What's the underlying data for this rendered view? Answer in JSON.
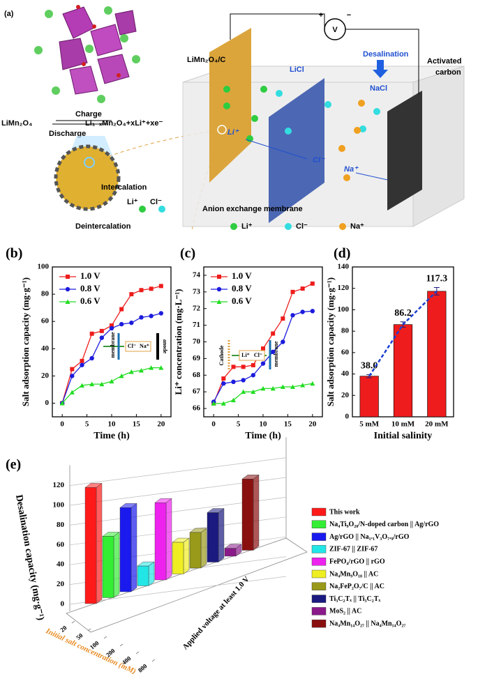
{
  "diagram": {
    "panel_label": "(a)",
    "reaction": {
      "reactant": "LiMn₂O₄",
      "product": "Li₁₋ₓMn₂O₄+xLi⁺+xe⁻",
      "forward": "Charge",
      "reverse": "Discharge"
    },
    "intercalation": "Intercalation",
    "deintercalation": "Deintercalation",
    "particle_ions": [
      "Li⁺",
      "Cl⁻"
    ],
    "electrode_left": "LiMn₂O₄/C",
    "electrode_right": [
      "Activated",
      "carbon"
    ],
    "compartment_left": "LiCl",
    "compartment_right": "NaCl",
    "process": "Desalination",
    "voltmeter": "V",
    "plus": "+",
    "minus": "−",
    "cell_ions": [
      "Li⁺",
      "Cl⁻",
      "Na⁺"
    ],
    "membrane": "Anion exchange membrane",
    "legend": [
      {
        "label": "Li⁺",
        "color": "#2ecc40"
      },
      {
        "label": "Cl⁻",
        "color": "#33dde0"
      },
      {
        "label": "Na⁺",
        "color": "#f0a020"
      }
    ]
  },
  "chart_data": [
    {
      "type": "line",
      "panel_label": "(b)",
      "xlabel": "Time (h)",
      "ylabel": "Salt adsorption capacity (mg·g⁻¹)",
      "x": [
        0,
        2,
        4,
        6,
        8,
        10,
        12,
        14,
        16,
        18,
        20
      ],
      "series": [
        {
          "name": "1.0 V",
          "color": "#ee1c1c",
          "marker": "square",
          "values": [
            0,
            25,
            31,
            51,
            53,
            57,
            69,
            80,
            83,
            84,
            86
          ]
        },
        {
          "name": "0.8 V",
          "color": "#1c1cdd",
          "marker": "circle",
          "values": [
            0,
            20,
            28,
            33,
            48,
            55,
            58,
            59,
            63,
            64,
            66
          ]
        },
        {
          "name": "0.6 V",
          "color": "#22dd22",
          "marker": "triangle",
          "values": [
            0,
            8,
            13,
            14,
            14,
            16,
            20,
            23,
            24,
            26,
            26
          ]
        }
      ],
      "xlim": [
        -2,
        22
      ],
      "xticks": [
        0,
        5,
        10,
        15,
        20
      ],
      "ylim": [
        -10,
        100
      ],
      "yticks": [
        0,
        20,
        40,
        60,
        80,
        100
      ],
      "annotations": [
        "membrane",
        "Cl⁻",
        "Na⁺",
        "anode"
      ]
    },
    {
      "type": "line",
      "panel_label": "(c)",
      "xlabel": "Time (h)",
      "ylabel": "Li⁺ concentration (mg·L⁻¹)",
      "x": [
        0,
        2,
        4,
        6,
        8,
        10,
        12,
        14,
        16,
        18,
        20
      ],
      "series": [
        {
          "name": "1.0 V",
          "color": "#ee1c1c",
          "marker": "square",
          "values": [
            66.3,
            67.8,
            68.5,
            68.5,
            68.6,
            69.6,
            70.5,
            71.4,
            73.0,
            73.2,
            73.5
          ]
        },
        {
          "name": "0.8 V",
          "color": "#1c1cdd",
          "marker": "circle",
          "values": [
            66.4,
            67.5,
            67.6,
            67.7,
            68.0,
            68.7,
            69.4,
            70.0,
            71.6,
            71.8,
            71.85
          ]
        },
        {
          "name": "0.6 V",
          "color": "#22dd22",
          "marker": "triangle",
          "values": [
            66.3,
            66.3,
            66.5,
            67.0,
            67.0,
            67.2,
            67.2,
            67.3,
            67.3,
            67.4,
            67.5
          ]
        }
      ],
      "xlim": [
        -2,
        22
      ],
      "xticks": [
        0,
        5,
        10,
        15,
        20
      ],
      "ylim": [
        65.5,
        74.5
      ],
      "yticks": [
        66,
        67,
        68,
        69,
        70,
        71,
        72,
        73,
        74
      ],
      "annotations": [
        "Cathode",
        "Li⁺",
        "Cl⁻",
        "membrane"
      ]
    },
    {
      "type": "bar",
      "panel_label": "(d)",
      "xlabel": "Initial salinity",
      "ylabel": "Salt adsorption capacity (mg·g⁻¹)",
      "categories": [
        "5 mM",
        "10 mM",
        "20 mM"
      ],
      "values": [
        38.0,
        86.2,
        117.3
      ],
      "value_labels": [
        "38.0",
        "86.2",
        "117.3"
      ],
      "errors": [
        1.5,
        2.5,
        3.5
      ],
      "color": "#ee1c1c",
      "trend_color": "#1a3fd1",
      "ylim": [
        0,
        140
      ],
      "yticks": [
        0,
        20,
        40,
        60,
        80,
        100,
        120,
        140
      ]
    },
    {
      "type": "bar3d",
      "panel_label": "(e)",
      "ylabel": "Desalination capacity (mg·g⁻¹)",
      "xlabel": "Initial salt concentration (mM)",
      "zlabel": "Applied voltage at least 1.0 V",
      "categories": [
        "This work",
        "Na₄Ti₉O₂₀/N-doped carbon || Ag/rGO",
        "Ag/rGO || Na₁.₁V₃O₇.₉/rGO",
        "ZIF-67 || ZIF-67",
        "FePO₄/rGO || rGO",
        "Na₄Mn₉O₁₈ || AC",
        "Na₂FeP₂O₇/C || AC",
        "Ti₃C₂Tₓ || Ti₃C₂Tₓ",
        "MoS₂ || AC",
        "Na₄Mn₁₄O₂₇ || Na₄Mn₁₄O₂₇"
      ],
      "values": [
        117.3,
        62,
        85,
        20,
        78,
        32,
        36,
        50,
        8,
        72
      ],
      "colors": [
        "#ff1a1a",
        "#33ee33",
        "#1a1aee",
        "#22e6e6",
        "#ee22ee",
        "#eeee22",
        "#99991a",
        "#1a1a80",
        "#8a1a8a",
        "#8a1010"
      ],
      "ylim": [
        0,
        130
      ],
      "yticks": [
        0,
        20,
        40,
        60,
        80,
        100,
        120
      ],
      "xticks": [
        20,
        50,
        100,
        200,
        400,
        800
      ]
    }
  ]
}
